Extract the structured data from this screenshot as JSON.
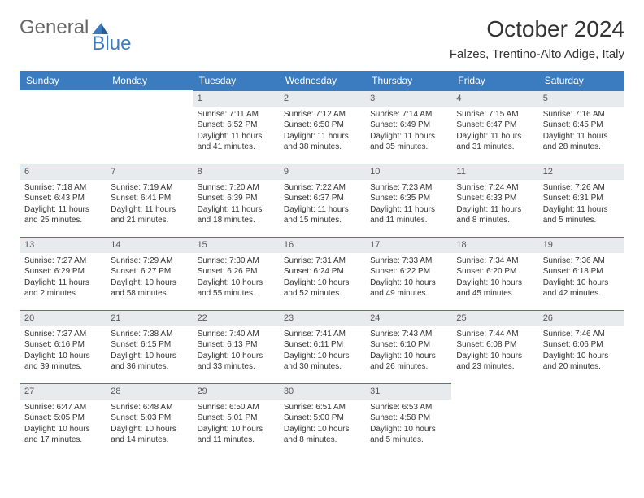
{
  "brand": {
    "part1": "General",
    "part2": "Blue"
  },
  "title": "October 2024",
  "location": "Falzes, Trentino-Alto Adige, Italy",
  "colors": {
    "header_bg": "#3b7bbf",
    "header_text": "#ffffff",
    "daynum_bg": "#e8ebee",
    "border": "#3b7bbf",
    "body_text": "#333333",
    "logo_gray": "#666666",
    "logo_blue": "#3b7bbf"
  },
  "weekdays": [
    "Sunday",
    "Monday",
    "Tuesday",
    "Wednesday",
    "Thursday",
    "Friday",
    "Saturday"
  ],
  "weeks": [
    [
      {
        "n": "",
        "sr": "",
        "ss": "",
        "dl": ""
      },
      {
        "n": "",
        "sr": "",
        "ss": "",
        "dl": ""
      },
      {
        "n": "1",
        "sr": "Sunrise: 7:11 AM",
        "ss": "Sunset: 6:52 PM",
        "dl": "Daylight: 11 hours and 41 minutes."
      },
      {
        "n": "2",
        "sr": "Sunrise: 7:12 AM",
        "ss": "Sunset: 6:50 PM",
        "dl": "Daylight: 11 hours and 38 minutes."
      },
      {
        "n": "3",
        "sr": "Sunrise: 7:14 AM",
        "ss": "Sunset: 6:49 PM",
        "dl": "Daylight: 11 hours and 35 minutes."
      },
      {
        "n": "4",
        "sr": "Sunrise: 7:15 AM",
        "ss": "Sunset: 6:47 PM",
        "dl": "Daylight: 11 hours and 31 minutes."
      },
      {
        "n": "5",
        "sr": "Sunrise: 7:16 AM",
        "ss": "Sunset: 6:45 PM",
        "dl": "Daylight: 11 hours and 28 minutes."
      }
    ],
    [
      {
        "n": "6",
        "sr": "Sunrise: 7:18 AM",
        "ss": "Sunset: 6:43 PM",
        "dl": "Daylight: 11 hours and 25 minutes."
      },
      {
        "n": "7",
        "sr": "Sunrise: 7:19 AM",
        "ss": "Sunset: 6:41 PM",
        "dl": "Daylight: 11 hours and 21 minutes."
      },
      {
        "n": "8",
        "sr": "Sunrise: 7:20 AM",
        "ss": "Sunset: 6:39 PM",
        "dl": "Daylight: 11 hours and 18 minutes."
      },
      {
        "n": "9",
        "sr": "Sunrise: 7:22 AM",
        "ss": "Sunset: 6:37 PM",
        "dl": "Daylight: 11 hours and 15 minutes."
      },
      {
        "n": "10",
        "sr": "Sunrise: 7:23 AM",
        "ss": "Sunset: 6:35 PM",
        "dl": "Daylight: 11 hours and 11 minutes."
      },
      {
        "n": "11",
        "sr": "Sunrise: 7:24 AM",
        "ss": "Sunset: 6:33 PM",
        "dl": "Daylight: 11 hours and 8 minutes."
      },
      {
        "n": "12",
        "sr": "Sunrise: 7:26 AM",
        "ss": "Sunset: 6:31 PM",
        "dl": "Daylight: 11 hours and 5 minutes."
      }
    ],
    [
      {
        "n": "13",
        "sr": "Sunrise: 7:27 AM",
        "ss": "Sunset: 6:29 PM",
        "dl": "Daylight: 11 hours and 2 minutes."
      },
      {
        "n": "14",
        "sr": "Sunrise: 7:29 AM",
        "ss": "Sunset: 6:27 PM",
        "dl": "Daylight: 10 hours and 58 minutes."
      },
      {
        "n": "15",
        "sr": "Sunrise: 7:30 AM",
        "ss": "Sunset: 6:26 PM",
        "dl": "Daylight: 10 hours and 55 minutes."
      },
      {
        "n": "16",
        "sr": "Sunrise: 7:31 AM",
        "ss": "Sunset: 6:24 PM",
        "dl": "Daylight: 10 hours and 52 minutes."
      },
      {
        "n": "17",
        "sr": "Sunrise: 7:33 AM",
        "ss": "Sunset: 6:22 PM",
        "dl": "Daylight: 10 hours and 49 minutes."
      },
      {
        "n": "18",
        "sr": "Sunrise: 7:34 AM",
        "ss": "Sunset: 6:20 PM",
        "dl": "Daylight: 10 hours and 45 minutes."
      },
      {
        "n": "19",
        "sr": "Sunrise: 7:36 AM",
        "ss": "Sunset: 6:18 PM",
        "dl": "Daylight: 10 hours and 42 minutes."
      }
    ],
    [
      {
        "n": "20",
        "sr": "Sunrise: 7:37 AM",
        "ss": "Sunset: 6:16 PM",
        "dl": "Daylight: 10 hours and 39 minutes."
      },
      {
        "n": "21",
        "sr": "Sunrise: 7:38 AM",
        "ss": "Sunset: 6:15 PM",
        "dl": "Daylight: 10 hours and 36 minutes."
      },
      {
        "n": "22",
        "sr": "Sunrise: 7:40 AM",
        "ss": "Sunset: 6:13 PM",
        "dl": "Daylight: 10 hours and 33 minutes."
      },
      {
        "n": "23",
        "sr": "Sunrise: 7:41 AM",
        "ss": "Sunset: 6:11 PM",
        "dl": "Daylight: 10 hours and 30 minutes."
      },
      {
        "n": "24",
        "sr": "Sunrise: 7:43 AM",
        "ss": "Sunset: 6:10 PM",
        "dl": "Daylight: 10 hours and 26 minutes."
      },
      {
        "n": "25",
        "sr": "Sunrise: 7:44 AM",
        "ss": "Sunset: 6:08 PM",
        "dl": "Daylight: 10 hours and 23 minutes."
      },
      {
        "n": "26",
        "sr": "Sunrise: 7:46 AM",
        "ss": "Sunset: 6:06 PM",
        "dl": "Daylight: 10 hours and 20 minutes."
      }
    ],
    [
      {
        "n": "27",
        "sr": "Sunrise: 6:47 AM",
        "ss": "Sunset: 5:05 PM",
        "dl": "Daylight: 10 hours and 17 minutes."
      },
      {
        "n": "28",
        "sr": "Sunrise: 6:48 AM",
        "ss": "Sunset: 5:03 PM",
        "dl": "Daylight: 10 hours and 14 minutes."
      },
      {
        "n": "29",
        "sr": "Sunrise: 6:50 AM",
        "ss": "Sunset: 5:01 PM",
        "dl": "Daylight: 10 hours and 11 minutes."
      },
      {
        "n": "30",
        "sr": "Sunrise: 6:51 AM",
        "ss": "Sunset: 5:00 PM",
        "dl": "Daylight: 10 hours and 8 minutes."
      },
      {
        "n": "31",
        "sr": "Sunrise: 6:53 AM",
        "ss": "Sunset: 4:58 PM",
        "dl": "Daylight: 10 hours and 5 minutes."
      },
      {
        "n": "",
        "sr": "",
        "ss": "",
        "dl": ""
      },
      {
        "n": "",
        "sr": "",
        "ss": "",
        "dl": ""
      }
    ]
  ]
}
